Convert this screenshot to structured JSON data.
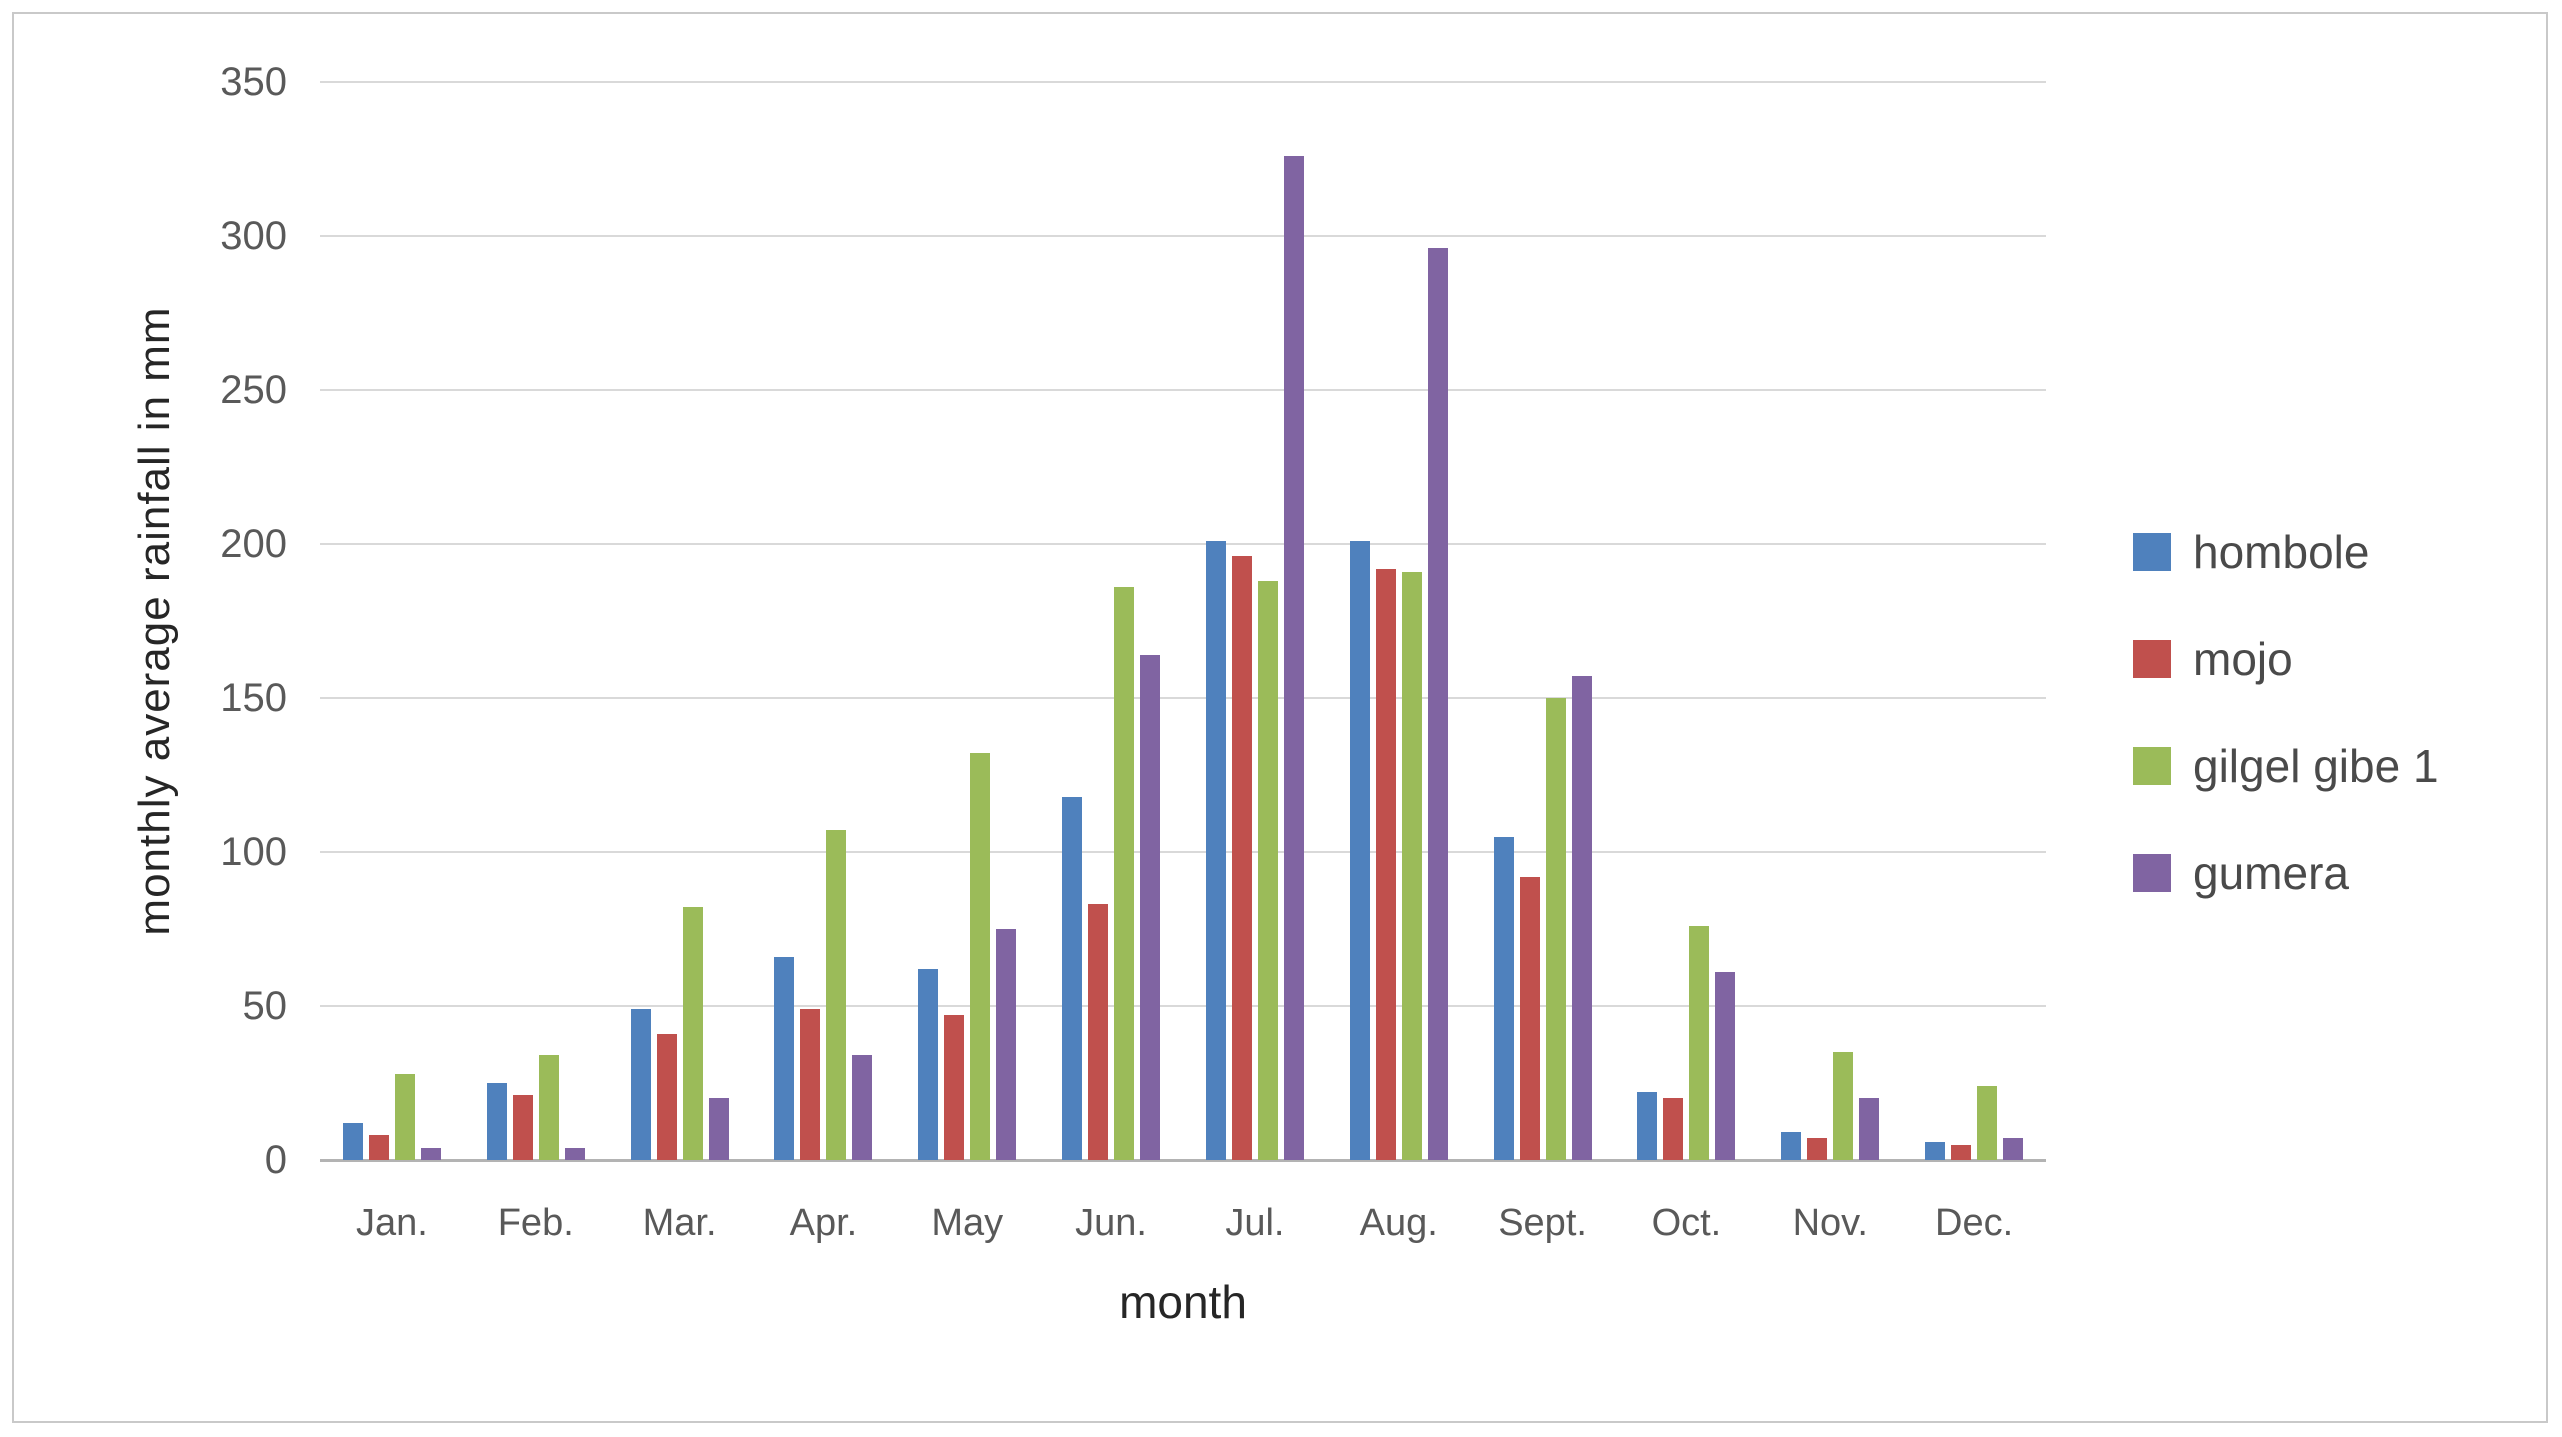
{
  "figure": {
    "background": "#ffffff",
    "border_color": "#c9c9c9",
    "gridline_color": "#d9d9d9",
    "axis_line_color": "#b3b3b3",
    "tick_label_color": "#595959",
    "axis_title_color": "#262626",
    "legend_text_color": "#4a4a4a"
  },
  "chart_data": {
    "type": "bar",
    "title": "",
    "xlabel": "month",
    "ylabel": "monthly average rainfall in mm",
    "ylim": [
      0,
      350
    ],
    "ytick_step": 50,
    "yticks": [
      0,
      50,
      100,
      150,
      200,
      250,
      300,
      350
    ],
    "grid": true,
    "legend_position": "right",
    "categories": [
      "Jan.",
      "Feb.",
      "Mar.",
      "Apr.",
      "May",
      "Jun.",
      "Jul.",
      "Aug.",
      "Sept.",
      "Oct.",
      "Nov.",
      "Dec."
    ],
    "series": [
      {
        "name": "hombole",
        "color": "#4F81BD",
        "values": [
          12,
          25,
          49,
          66,
          62,
          118,
          201,
          201,
          105,
          22,
          9,
          6
        ]
      },
      {
        "name": "mojo",
        "color": "#C0504D",
        "values": [
          8,
          21,
          41,
          49,
          47,
          83,
          196,
          192,
          92,
          20,
          7,
          5
        ]
      },
      {
        "name": "gilgel gibe 1",
        "color": "#9BBB59",
        "values": [
          28,
          34,
          82,
          107,
          132,
          186,
          188,
          191,
          150,
          76,
          35,
          24
        ]
      },
      {
        "name": "gumera",
        "color": "#8064A2",
        "values": [
          4,
          4,
          20,
          34,
          75,
          164,
          326,
          296,
          157,
          61,
          20,
          7
        ]
      }
    ]
  }
}
